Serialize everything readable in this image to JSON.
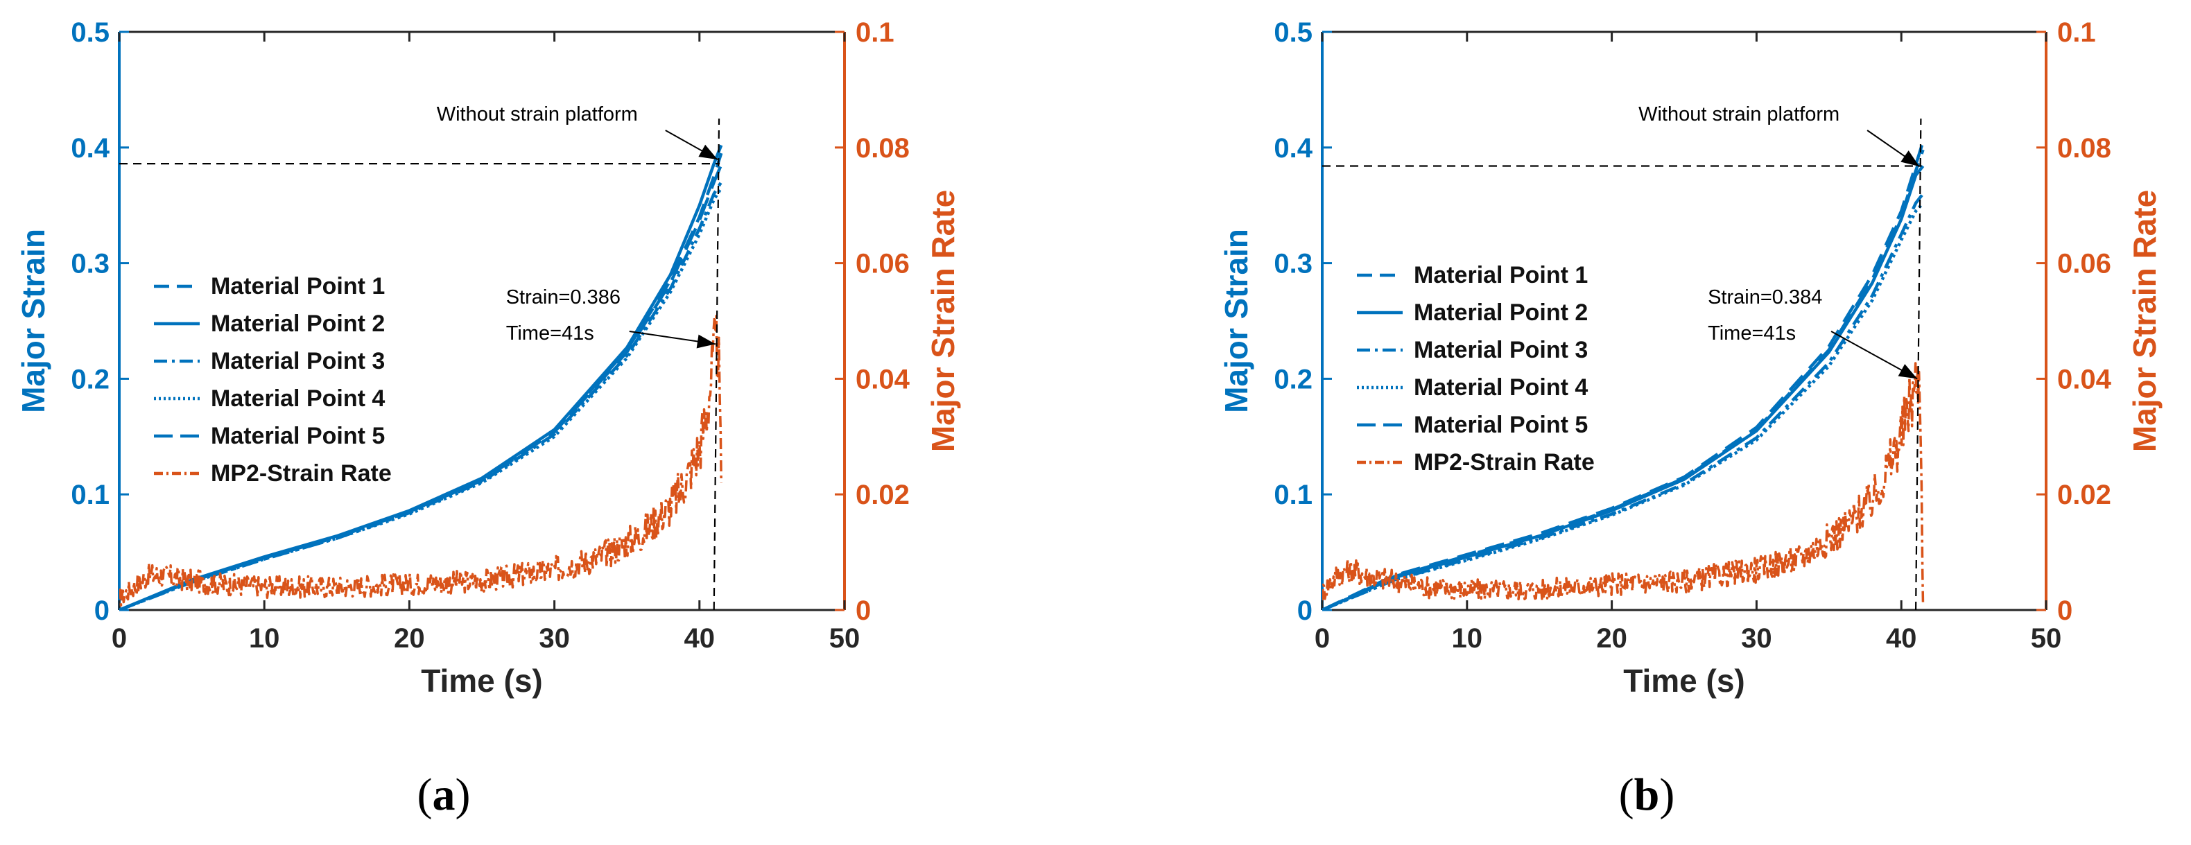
{
  "colors": {
    "blue": "#0072BD",
    "orange": "#D95319",
    "black": "#000000"
  },
  "chart_data": [
    {
      "type": "line",
      "panel_caption_open": "(",
      "panel_caption_letter": "a",
      "panel_caption_close": ")",
      "xlabel": "Time (s)",
      "ylabel_left": "Major Strain",
      "ylabel_right": "Major Strain Rate",
      "xlim": [
        0,
        50
      ],
      "ylim_left": [
        0,
        0.5
      ],
      "ylim_right": [
        0,
        0.1
      ],
      "x_ticks": [
        "0",
        "10",
        "20",
        "30",
        "40",
        "50"
      ],
      "y_left_ticks": [
        "0",
        "0.1",
        "0.2",
        "0.3",
        "0.4",
        "0.5"
      ],
      "y_right_ticks": [
        "0",
        "0.02",
        "0.04",
        "0.06",
        "0.08",
        "0.1"
      ],
      "legend": [
        "Material Point 1",
        "Material Point 2",
        "Material Point 3",
        "Material Point 4",
        "Material Point 5",
        "MP2-Strain Rate"
      ],
      "annotations": {
        "platform_text": "Without strain platform",
        "strain_text": "Strain=0.386",
        "time_text": "Time=41s"
      },
      "reference": {
        "strain": 0.386,
        "time": 41,
        "vline_top": 0.425,
        "arrow_target_rate": 0.046,
        "arrow_target_strain": 0.386
      },
      "series": [
        {
          "name": "Material Point 1",
          "axis": "left",
          "dash": "28,14",
          "x": [
            0,
            5,
            10,
            15,
            20,
            25,
            30,
            35,
            38,
            40,
            41,
            41.5
          ],
          "y": [
            0,
            0.025,
            0.045,
            0.063,
            0.085,
            0.113,
            0.155,
            0.225,
            0.285,
            0.34,
            0.375,
            0.395
          ]
        },
        {
          "name": "Material Point 2",
          "axis": "left",
          "dash": "",
          "x": [
            0,
            5,
            10,
            15,
            20,
            25,
            30,
            35,
            38,
            40,
            41,
            41.5
          ],
          "y": [
            0,
            0.026,
            0.046,
            0.064,
            0.086,
            0.114,
            0.156,
            0.227,
            0.29,
            0.35,
            0.386,
            0.402
          ]
        },
        {
          "name": "Material Point 3",
          "axis": "left",
          "dash": "24,9,5,9",
          "x": [
            0,
            5,
            10,
            15,
            20,
            25,
            30,
            35,
            38,
            40,
            41,
            41.5
          ],
          "y": [
            0,
            0.024,
            0.044,
            0.062,
            0.084,
            0.111,
            0.152,
            0.22,
            0.278,
            0.33,
            0.36,
            0.37
          ]
        },
        {
          "name": "Material Point 4",
          "axis": "left",
          "dash": "4,5",
          "x": [
            0,
            5,
            10,
            15,
            20,
            25,
            30,
            35,
            38,
            40,
            41,
            41.5
          ],
          "y": [
            0,
            0.024,
            0.044,
            0.062,
            0.083,
            0.11,
            0.15,
            0.218,
            0.275,
            0.325,
            0.355,
            0.365
          ]
        },
        {
          "name": "Material Point 5",
          "axis": "left",
          "dash": "34,14",
          "x": [
            0,
            5,
            10,
            15,
            20,
            25,
            30,
            35,
            38,
            40,
            41,
            41.5
          ],
          "y": [
            0,
            0.025,
            0.045,
            0.063,
            0.085,
            0.112,
            0.154,
            0.223,
            0.283,
            0.337,
            0.37,
            0.385
          ]
        },
        {
          "name": "MP2-Strain Rate",
          "axis": "right",
          "dash": "16,6,4,6",
          "x": [
            0,
            1,
            2,
            3,
            5,
            7,
            10,
            15,
            20,
            25,
            30,
            33,
            36,
            38,
            39,
            40,
            40.5,
            41,
            41.3,
            41.5
          ],
          "y": [
            0.002,
            0.004,
            0.006,
            0.006,
            0.005,
            0.0045,
            0.004,
            0.004,
            0.0045,
            0.005,
            0.007,
            0.009,
            0.013,
            0.018,
            0.022,
            0.028,
            0.034,
            0.044,
            0.046,
            0.022
          ]
        }
      ]
    },
    {
      "type": "line",
      "panel_caption_open": "(",
      "panel_caption_letter": "b",
      "panel_caption_close": ")",
      "xlabel": "Time (s)",
      "ylabel_left": "Major Strain",
      "ylabel_right": "Major Strain Rate",
      "xlim": [
        0,
        50
      ],
      "ylim_left": [
        0,
        0.5
      ],
      "ylim_right": [
        0,
        0.1
      ],
      "x_ticks": [
        "0",
        "10",
        "20",
        "30",
        "40",
        "50"
      ],
      "y_left_ticks": [
        "0",
        "0.1",
        "0.2",
        "0.3",
        "0.4",
        "0.5"
      ],
      "y_right_ticks": [
        "0",
        "0.02",
        "0.04",
        "0.06",
        "0.08",
        "0.1"
      ],
      "legend": [
        "Material Point 1",
        "Material Point 2",
        "Material Point 3",
        "Material Point 4",
        "Material Point 5",
        "MP2-Strain Rate"
      ],
      "annotations": {
        "platform_text": "Without strain platform",
        "strain_text": "Strain=0.384",
        "time_text": "Time=41s"
      },
      "reference": {
        "strain": 0.384,
        "time": 41,
        "vline_top": 0.425,
        "arrow_target_rate": 0.04,
        "arrow_target_strain": 0.38
      },
      "series": [
        {
          "name": "Material Point 1",
          "axis": "left",
          "dash": "28,14",
          "x": [
            0,
            5,
            10,
            15,
            20,
            25,
            30,
            35,
            38,
            40,
            41,
            41.5
          ],
          "y": [
            0,
            0.03,
            0.048,
            0.066,
            0.088,
            0.115,
            0.158,
            0.228,
            0.29,
            0.345,
            0.385,
            0.405
          ]
        },
        {
          "name": "Material Point 2",
          "axis": "left",
          "dash": "",
          "x": [
            0,
            5,
            10,
            15,
            20,
            25,
            30,
            35,
            38,
            40,
            41,
            41.5
          ],
          "y": [
            0,
            0.028,
            0.046,
            0.064,
            0.086,
            0.113,
            0.155,
            0.223,
            0.283,
            0.338,
            0.376,
            0.384
          ]
        },
        {
          "name": "Material Point 3",
          "axis": "left",
          "dash": "24,9,5,9",
          "x": [
            0,
            5,
            10,
            15,
            20,
            25,
            30,
            35,
            38,
            40,
            41,
            41.5
          ],
          "y": [
            0,
            0.026,
            0.044,
            0.062,
            0.083,
            0.109,
            0.149,
            0.214,
            0.272,
            0.325,
            0.352,
            0.36
          ]
        },
        {
          "name": "Material Point 4",
          "axis": "left",
          "dash": "4,5",
          "x": [
            0,
            5,
            10,
            15,
            20,
            25,
            30,
            35,
            38,
            40,
            41,
            41.5
          ],
          "y": [
            0,
            0.026,
            0.043,
            0.061,
            0.082,
            0.108,
            0.147,
            0.211,
            0.268,
            0.32,
            0.345,
            0.352
          ]
        },
        {
          "name": "Material Point 5",
          "axis": "left",
          "dash": "34,14",
          "x": [
            0,
            5,
            10,
            15,
            20,
            25,
            30,
            35,
            38,
            40,
            41,
            41.5
          ],
          "y": [
            0,
            0.029,
            0.047,
            0.065,
            0.087,
            0.114,
            0.156,
            0.225,
            0.286,
            0.341,
            0.38,
            0.398
          ]
        },
        {
          "name": "MP2-Strain Rate",
          "axis": "right",
          "dash": "16,6,4,6",
          "x": [
            0,
            1,
            2,
            3,
            5,
            7,
            10,
            15,
            20,
            25,
            30,
            33,
            36,
            38,
            39,
            40,
            40.5,
            41,
            41.3,
            41.5
          ],
          "y": [
            0.003,
            0.006,
            0.007,
            0.006,
            0.005,
            0.004,
            0.0035,
            0.0035,
            0.0045,
            0.005,
            0.007,
            0.009,
            0.014,
            0.019,
            0.024,
            0.03,
            0.035,
            0.039,
            0.04,
            0.001
          ]
        }
      ]
    }
  ]
}
